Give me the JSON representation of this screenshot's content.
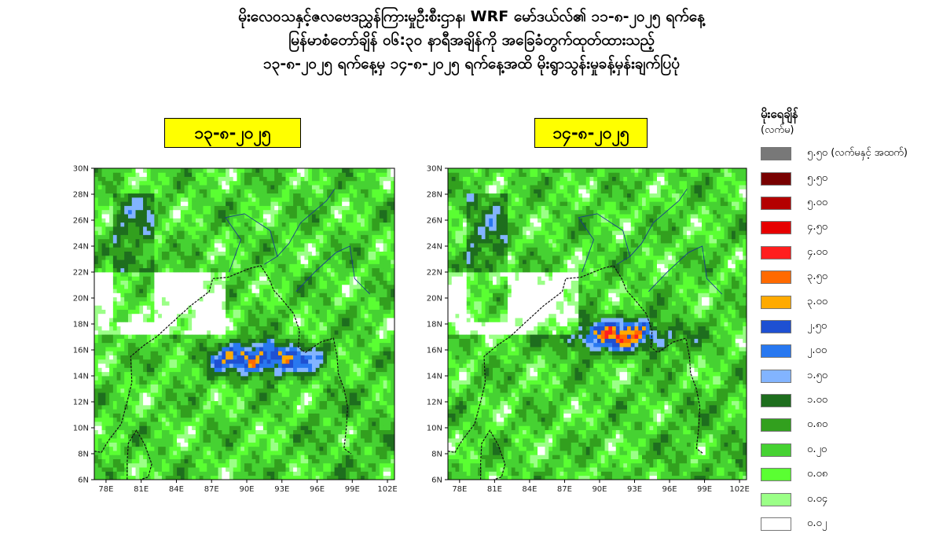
{
  "title_lines": [
    "မိုးလေဝသနှင့်ဇလဗေဒညွှန်ကြားမှုဦးစီးဌာန၊ WRF မော်ဒယ်လ်၏ ၁၁-၈-၂၀၂၅ ရက်နေ့",
    "မြန်မာစံတော်ချိန် ၀၆:၃၀ နာရီအချိန်ကို အခြေခံတွက်ထုတ်ထားသည့်",
    "၁၃-၈-၂၀၂၅ ရက်နေ့မှ ၁၄-၈-၂၀၂၅ ရက်နေ့အထိ မိုးရွာသွန်းမှုခန့်မှန်းချက်ပြပုံ"
  ],
  "maps": [
    {
      "date_label": "၁၃-၈-၂၀၂၅",
      "heavy_core": {
        "lon": 91.2,
        "lat": 15.2
      }
    },
    {
      "date_label": "၁၄-၈-၂၀၂၅",
      "heavy_core": {
        "lon": 91.5,
        "lat": 17.0
      }
    }
  ],
  "axes": {
    "lon_ticks": [
      "78E",
      "81E",
      "84E",
      "87E",
      "90E",
      "93E",
      "96E",
      "99E",
      "102E"
    ],
    "lat_ticks": [
      "6N",
      "8N",
      "10N",
      "12N",
      "14N",
      "16N",
      "18N",
      "20N",
      "22N",
      "24N",
      "26N",
      "28N",
      "30N"
    ],
    "lon_range": [
      77,
      102.6
    ],
    "lat_range": [
      6,
      30
    ]
  },
  "legend": {
    "title": "မိုးရေချိန်",
    "unit": "(လက်မ)",
    "items": [
      {
        "label": "၅.၅၀ (လက်မနှင့် အထက်)",
        "color": "#787878"
      },
      {
        "label": "၅.၅၀",
        "color": "#780000"
      },
      {
        "label": "၅.၀၀",
        "color": "#b40000"
      },
      {
        "label": "၄.၅၀",
        "color": "#e60000"
      },
      {
        "label": "၄.၀၀",
        "color": "#ff1e1e"
      },
      {
        "label": "၃.၅၀",
        "color": "#ff6a00"
      },
      {
        "label": "၃.၀၀",
        "color": "#ffaa00"
      },
      {
        "label": "၂.၅၀",
        "color": "#1e50d2"
      },
      {
        "label": "၂.၀၀",
        "color": "#2878f0"
      },
      {
        "label": "၁.၅၀",
        "color": "#82b4ff"
      },
      {
        "label": "၁.၀၀",
        "color": "#1e6e1e"
      },
      {
        "label": "၀.၈၀",
        "color": "#32a01e"
      },
      {
        "label": "၀.၂၀",
        "color": "#46d232"
      },
      {
        "label": "၀.၀၈",
        "color": "#5aff32"
      },
      {
        "label": "၀.၀၄",
        "color": "#9bff87"
      },
      {
        "label": "၀.၀၂",
        "color": "#ffffff"
      }
    ]
  }
}
